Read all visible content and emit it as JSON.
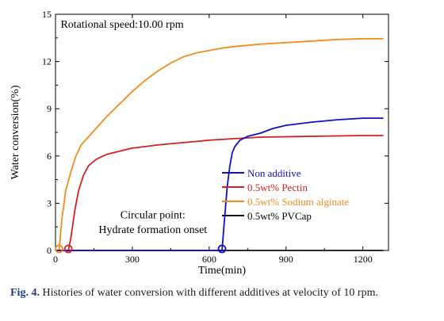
{
  "caption": {
    "label": "Fig. 4.",
    "text": " Histories of water conversion with different additives at velocity of 10 rpm."
  },
  "chart_data": {
    "type": "line",
    "title": "",
    "xlabel": "Time(min)",
    "ylabel": "Water conversion(%)",
    "xlim": [
      0,
      1300
    ],
    "ylim": [
      0,
      15
    ],
    "xticks": [
      0,
      300,
      600,
      900,
      1200
    ],
    "yticks": [
      0,
      3,
      6,
      9,
      12,
      15
    ],
    "grid": false,
    "annotations": [
      {
        "text": "Rotational speed:10.00 rpm",
        "data_x": 20,
        "data_y": 14.15
      },
      {
        "text": "Circular point:",
        "data_x": 380,
        "data_y": 2.05
      },
      {
        "text": "Hydrate formation onset",
        "data_x": 380,
        "data_y": 1.1
      }
    ],
    "legend": {
      "placement": "bottom-right"
    },
    "series": [
      {
        "name": "Non additive",
        "color": "#1010c8",
        "onset": [
          650,
          0.1
        ],
        "x": [
          0,
          650,
          660,
          670,
          680,
          690,
          700,
          720,
          750,
          800,
          850,
          900,
          1000,
          1100,
          1200,
          1280
        ],
        "y": [
          0,
          0,
          2.0,
          4.0,
          5.3,
          6.2,
          6.6,
          7.0,
          7.25,
          7.45,
          7.75,
          7.95,
          8.15,
          8.3,
          8.4,
          8.4
        ]
      },
      {
        "name": "0.5wt% Pectin",
        "color": "#d42020",
        "onset": [
          50,
          0.1
        ],
        "x": [
          0,
          50,
          60,
          75,
          90,
          110,
          130,
          160,
          200,
          250,
          300,
          400,
          500,
          600,
          700,
          800,
          1000,
          1200,
          1280
        ],
        "y": [
          0,
          0,
          0.8,
          2.5,
          3.8,
          4.8,
          5.4,
          5.8,
          6.1,
          6.3,
          6.5,
          6.7,
          6.85,
          7.0,
          7.1,
          7.2,
          7.25,
          7.3,
          7.3
        ]
      },
      {
        "name": "0.5wt% Sodium alginate",
        "color": "#f28c1c",
        "onset": [
          14,
          0.1
        ],
        "x": [
          0,
          14,
          25,
          40,
          60,
          80,
          100,
          150,
          200,
          250,
          300,
          350,
          400,
          450,
          500,
          550,
          600,
          650,
          700,
          800,
          900,
          1000,
          1100,
          1200,
          1280
        ],
        "y": [
          0,
          0,
          2.0,
          3.8,
          5.0,
          6.0,
          6.7,
          7.6,
          8.5,
          9.3,
          10.1,
          10.8,
          11.4,
          11.9,
          12.3,
          12.55,
          12.7,
          12.85,
          12.95,
          13.1,
          13.2,
          13.3,
          13.4,
          13.45,
          13.45
        ]
      },
      {
        "name": "0.5wt% PVCap",
        "color": "#111111",
        "x": [
          0,
          1280
        ],
        "y": [
          0,
          0
        ]
      }
    ]
  }
}
